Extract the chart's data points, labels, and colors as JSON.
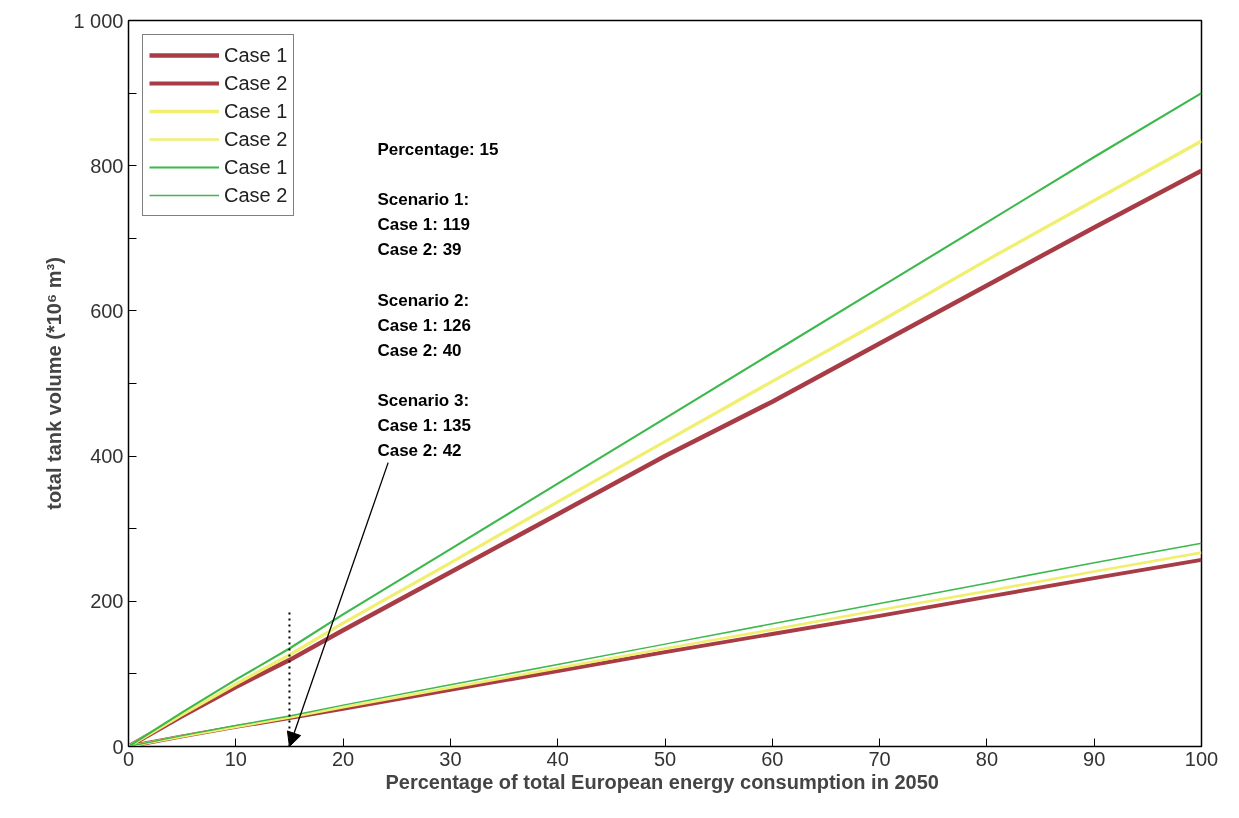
{
  "chart_data": {
    "type": "line",
    "xlabel": "Percentage of  total European energy consumption in 2050",
    "ylabel": "total tank volume (*10⁶ m³)",
    "x": [
      0,
      5,
      10,
      15,
      20,
      30,
      40,
      50,
      60,
      70,
      80,
      90,
      100
    ],
    "series": [
      {
        "name": "Case 1",
        "color": "#a83c46",
        "values": [
          0,
          42,
          82,
          119,
          160,
          240,
          320,
          400,
          475,
          555,
          635,
          715,
          793
        ]
      },
      {
        "name": "Case 2",
        "color": "#a83c46",
        "values": [
          0,
          14,
          27,
          39,
          52,
          78,
          104,
          130,
          155,
          180,
          206,
          232,
          257
        ]
      },
      {
        "name": "Case 1",
        "color": "#f0ef70",
        "values": [
          0,
          44,
          86,
          126,
          170,
          253,
          337,
          420,
          503,
          585,
          670,
          752,
          834
        ]
      },
      {
        "name": "Case 2",
        "color": "#f0ef70",
        "values": [
          0,
          14,
          27,
          40,
          54,
          81,
          108,
          135,
          161,
          188,
          214,
          241,
          267
        ]
      },
      {
        "name": "Case 1",
        "color": "#3cb84c",
        "values": [
          0,
          47,
          92,
          135,
          182,
          272,
          362,
          452,
          542,
          632,
          722,
          812,
          900
        ]
      },
      {
        "name": "Case 2",
        "color": "#3cb84c",
        "values": [
          0,
          15,
          29,
          42,
          57,
          85,
          113,
          141,
          169,
          197,
          225,
          253,
          280
        ]
      }
    ],
    "ref_lines": [
      {
        "axis": "x",
        "value": 15,
        "line_style": "dotted",
        "color": "#000000"
      }
    ],
    "annotations": [
      "Percentage: 15",
      "Scenario 1:",
      "Case 1: 119",
      "Case 2: 39",
      "Scenario 2:",
      "Case 1: 126",
      "Case 2: 40",
      "Scenario 3:",
      "Case 1: 135",
      {
        "text": "Case 2: 42",
        "x": 15,
        "y": 0
      }
    ],
    "xlim": [
      0,
      100
    ],
    "ylim": [
      0,
      1000
    ],
    "xticks": [
      0,
      10,
      20,
      30,
      40,
      50,
      60,
      70,
      80,
      90,
      100
    ],
    "yticks": [
      0,
      {
        "value": 100,
        "label": null
      },
      200,
      {
        "value": 300,
        "label": null
      },
      400,
      {
        "value": 500,
        "label": null
      },
      600,
      {
        "value": 700,
        "label": null
      },
      800,
      {
        "value": 900,
        "label": null
      },
      {
        "value": 1000,
        "label": "1 000"
      }
    ],
    "legend": "top left",
    "line_style": "solid"
  }
}
